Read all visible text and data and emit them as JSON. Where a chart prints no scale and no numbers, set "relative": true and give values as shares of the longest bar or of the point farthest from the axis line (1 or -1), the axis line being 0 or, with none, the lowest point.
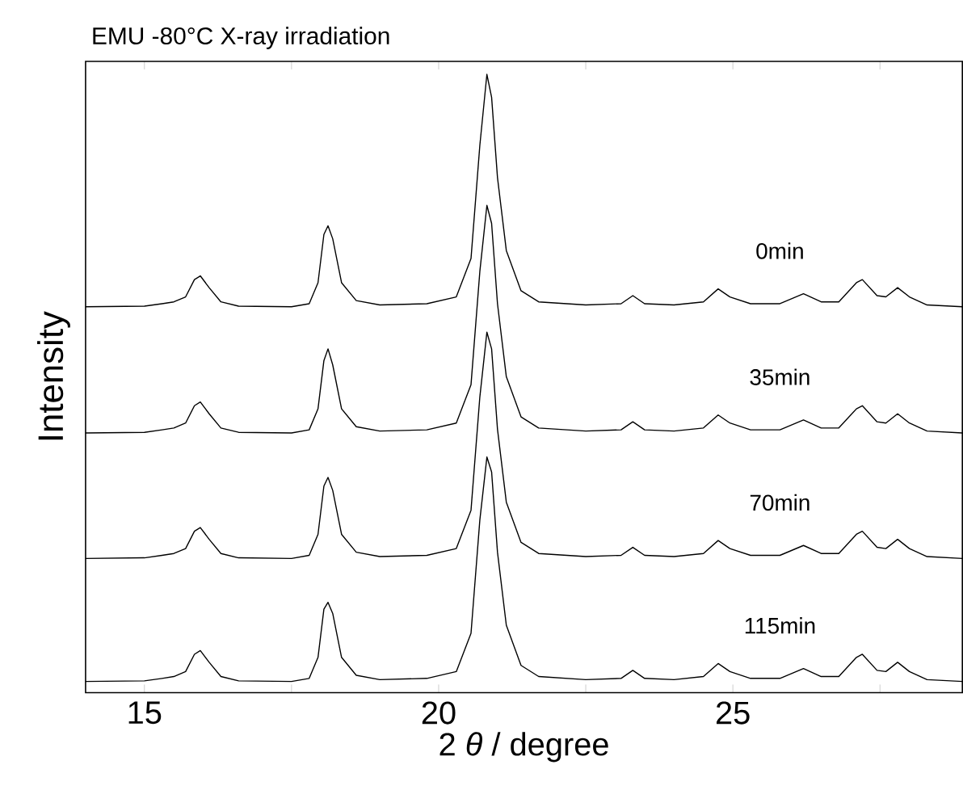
{
  "chart_data": {
    "type": "line",
    "title": "EMU  -80°C  X-ray irradiation",
    "xlabel": "2 *θ* / degree",
    "ylabel": "Intensity",
    "relative": true,
    "xlim": [
      14,
      28.9
    ],
    "xticks": [
      15,
      {
        "value": 17.5,
        "label": null
      },
      20,
      {
        "value": 22.5,
        "label": null
      },
      25,
      {
        "value": 27.5,
        "label": null
      }
    ],
    "tick_labels": "x",
    "marker": "none",
    "line_style": "solid",
    "x": [
      14.0,
      15.0,
      15.3,
      15.5,
      15.7,
      15.85,
      15.95,
      16.1,
      16.3,
      16.6,
      17.5,
      17.8,
      17.95,
      18.05,
      18.12,
      18.2,
      18.35,
      18.6,
      19.0,
      19.8,
      20.3,
      20.55,
      20.7,
      20.82,
      20.9,
      21.0,
      21.15,
      21.4,
      21.7,
      22.5,
      23.1,
      23.3,
      23.5,
      24.0,
      24.5,
      24.75,
      24.95,
      25.3,
      25.8,
      26.2,
      26.5,
      26.8,
      27.1,
      27.2,
      27.45,
      27.6,
      27.8,
      28.0,
      28.3,
      28.9
    ],
    "series": [
      {
        "name": "0min",
        "color": "#000000",
        "values": [
          0.624,
          0.625,
          0.629,
          0.632,
          0.64,
          0.668,
          0.674,
          0.655,
          0.632,
          0.625,
          0.624,
          0.629,
          0.663,
          0.741,
          0.755,
          0.734,
          0.663,
          0.634,
          0.627,
          0.629,
          0.64,
          0.702,
          0.885,
          1.0,
          0.963,
          0.833,
          0.715,
          0.65,
          0.632,
          0.627,
          0.629,
          0.642,
          0.629,
          0.627,
          0.632,
          0.653,
          0.64,
          0.629,
          0.629,
          0.645,
          0.632,
          0.632,
          0.663,
          0.668,
          0.642,
          0.64,
          0.655,
          0.64,
          0.627,
          0.624
        ]
      },
      {
        "name": "35min",
        "color": "#000000",
        "values": [
          0.42,
          0.421,
          0.425,
          0.428,
          0.436,
          0.464,
          0.47,
          0.451,
          0.428,
          0.421,
          0.42,
          0.425,
          0.459,
          0.537,
          0.556,
          0.53,
          0.459,
          0.43,
          0.423,
          0.425,
          0.436,
          0.498,
          0.681,
          0.788,
          0.759,
          0.629,
          0.511,
          0.446,
          0.428,
          0.423,
          0.425,
          0.438,
          0.425,
          0.423,
          0.428,
          0.449,
          0.436,
          0.425,
          0.425,
          0.441,
          0.428,
          0.428,
          0.459,
          0.464,
          0.438,
          0.436,
          0.451,
          0.436,
          0.423,
          0.42
        ]
      },
      {
        "name": "70min",
        "color": "#000000",
        "values": [
          0.217,
          0.218,
          0.222,
          0.225,
          0.233,
          0.261,
          0.267,
          0.248,
          0.225,
          0.218,
          0.217,
          0.222,
          0.256,
          0.334,
          0.348,
          0.327,
          0.256,
          0.227,
          0.22,
          0.222,
          0.233,
          0.295,
          0.478,
          0.583,
          0.556,
          0.426,
          0.308,
          0.243,
          0.225,
          0.22,
          0.222,
          0.235,
          0.222,
          0.22,
          0.225,
          0.246,
          0.233,
          0.222,
          0.222,
          0.238,
          0.225,
          0.225,
          0.256,
          0.261,
          0.235,
          0.233,
          0.248,
          0.233,
          0.22,
          0.217
        ]
      },
      {
        "name": "115min",
        "color": "#000000",
        "values": [
          0.018,
          0.019,
          0.023,
          0.026,
          0.034,
          0.062,
          0.068,
          0.049,
          0.026,
          0.019,
          0.018,
          0.023,
          0.057,
          0.135,
          0.146,
          0.128,
          0.057,
          0.028,
          0.021,
          0.023,
          0.034,
          0.096,
          0.279,
          0.381,
          0.357,
          0.227,
          0.109,
          0.044,
          0.026,
          0.021,
          0.023,
          0.036,
          0.023,
          0.021,
          0.026,
          0.047,
          0.034,
          0.023,
          0.023,
          0.039,
          0.026,
          0.026,
          0.057,
          0.062,
          0.036,
          0.034,
          0.049,
          0.034,
          0.021,
          0.018
        ]
      }
    ]
  }
}
